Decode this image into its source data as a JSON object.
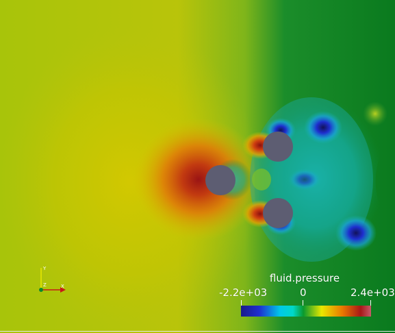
{
  "scene": {
    "scalar_field": "fluid.pressure",
    "obstacle_color": "#5d5d72"
  },
  "legend": {
    "title": "fluid.pressure",
    "min_label": "-2.2e+03",
    "mid_label": "0",
    "max_label": "2.4e+03",
    "min_value": -2200,
    "mid_value": 0,
    "max_value": 2400,
    "colormap": [
      "#1a1a8c",
      "#1e2fcf",
      "#00c8e8",
      "#00d8c8",
      "#0a9a2e",
      "#e8e800",
      "#e87800",
      "#a81818",
      "#c85a6a"
    ]
  },
  "orientation_axes": {
    "x_label": "X",
    "y_label": "Y",
    "z_label": "Z"
  }
}
